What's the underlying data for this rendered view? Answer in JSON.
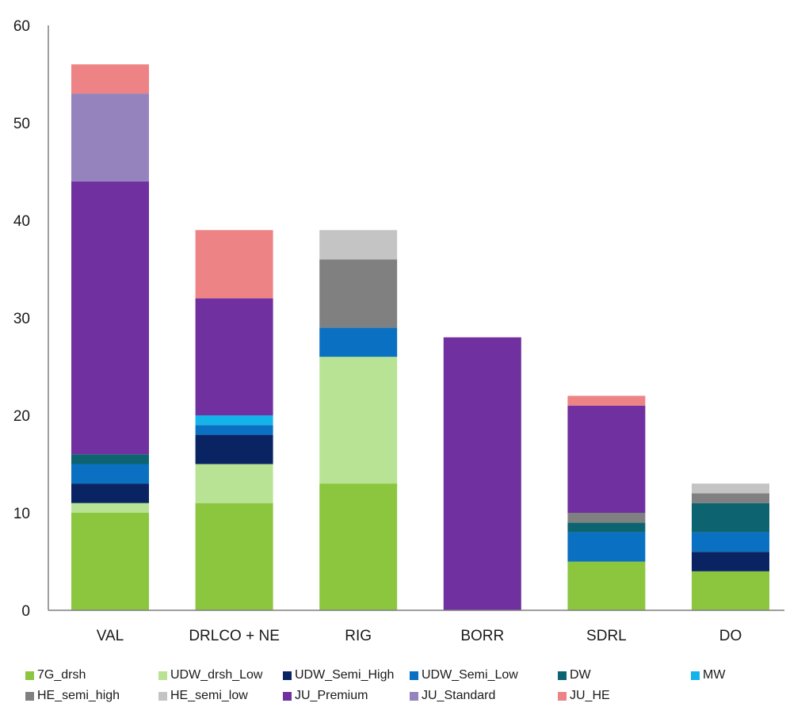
{
  "chart_data": {
    "type": "bar",
    "stacked": true,
    "categories": [
      "VAL",
      "DRLCO + NE",
      "RIG",
      "BORR",
      "SDRL",
      "DO"
    ],
    "ylim": [
      0,
      60
    ],
    "yticks": [
      0,
      10,
      20,
      30,
      40,
      50,
      60
    ],
    "grid": false,
    "legend_position": "bottom",
    "series": [
      {
        "name": "7G_drsh",
        "color": "#8cc63f",
        "values": [
          10,
          11,
          13,
          0,
          5,
          4
        ]
      },
      {
        "name": "UDW_drsh_Low",
        "color": "#b8e394",
        "values": [
          1,
          4,
          13,
          0,
          0,
          0
        ]
      },
      {
        "name": "UDW_Semi_High",
        "color": "#0a2463",
        "values": [
          2,
          3,
          0,
          0,
          0,
          2
        ]
      },
      {
        "name": "UDW_Semi_Low",
        "color": "#0a70c2",
        "values": [
          2,
          1,
          3,
          0,
          3,
          2
        ]
      },
      {
        "name": "DW",
        "color": "#0d6470",
        "values": [
          1,
          0,
          0,
          0,
          1,
          3
        ]
      },
      {
        "name": "MW",
        "color": "#14b4ea",
        "values": [
          0,
          1,
          0,
          0,
          0,
          0
        ]
      },
      {
        "name": "HE_semi_high",
        "color": "#808080",
        "values": [
          0,
          0,
          7,
          0,
          1,
          1
        ]
      },
      {
        "name": "HE_semi_low",
        "color": "#c4c4c4",
        "values": [
          0,
          0,
          3,
          0,
          0,
          1
        ]
      },
      {
        "name": "JU_Premium",
        "color": "#7030a0",
        "values": [
          28,
          12,
          0,
          28,
          11,
          0
        ]
      },
      {
        "name": "JU_Standard",
        "color": "#9583bd",
        "values": [
          9,
          0,
          0,
          0,
          0,
          0
        ]
      },
      {
        "name": "JU_HE",
        "color": "#ee8385",
        "values": [
          3,
          7,
          0,
          0,
          1,
          0
        ]
      }
    ]
  }
}
